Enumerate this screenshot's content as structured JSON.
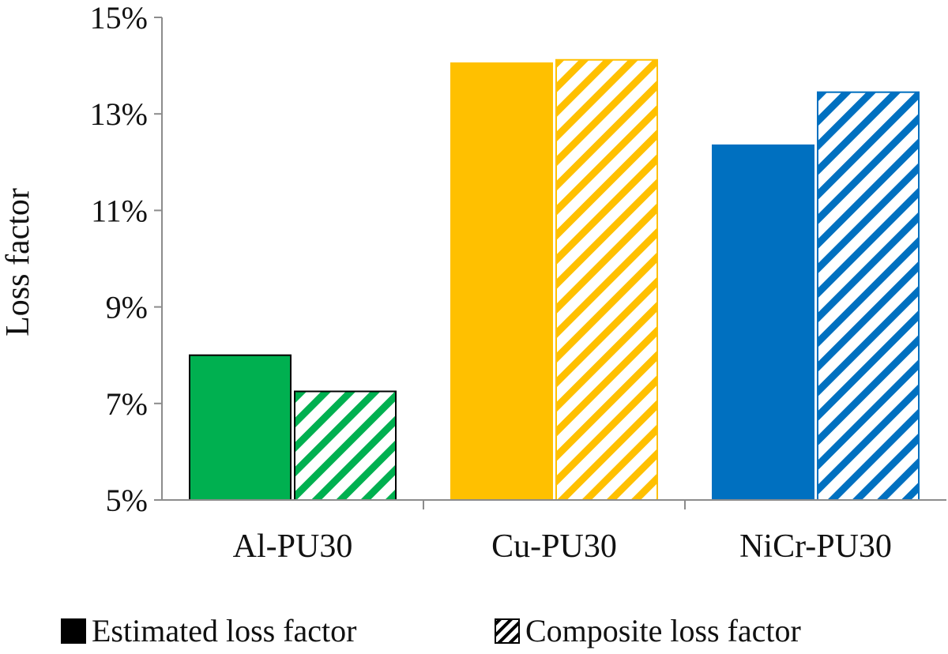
{
  "chart_data": {
    "type": "bar",
    "title": "",
    "xlabel": "",
    "ylabel": "Loss factor",
    "ylim": [
      5,
      15
    ],
    "yticks": [
      5,
      7,
      9,
      11,
      13,
      15
    ],
    "ytick_labels": [
      "5%",
      "7%",
      "9%",
      "11%",
      "13%",
      "15%"
    ],
    "y_unit": "%",
    "grid": false,
    "legend_position": "bottom",
    "categories": [
      "Al-PU30",
      "Cu-PU30",
      "NiCr-PU30"
    ],
    "category_colors": [
      "#00B050",
      "#FFC000",
      "#0070C0"
    ],
    "series": [
      {
        "name": "Estimated loss factor",
        "style": "solid",
        "values": [
          8.0,
          14.05,
          12.35
        ]
      },
      {
        "name": "Composite loss factor",
        "style": "hatched",
        "values": [
          7.25,
          14.12,
          13.45
        ]
      }
    ]
  }
}
